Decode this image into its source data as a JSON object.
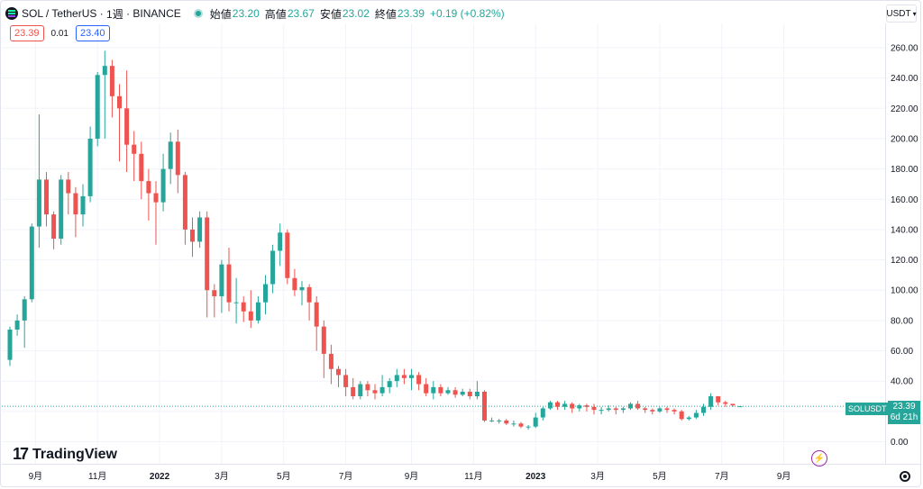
{
  "legend": {
    "symbol": "SOL / TetherUS",
    "interval": "1週",
    "exchange": "BINANCE",
    "open_label": "始値",
    "open": "23.20",
    "high_label": "高値",
    "high": "23.67",
    "low_label": "安値",
    "low": "23.02",
    "close_label": "終値",
    "close": "23.39",
    "change": "+0.19 (+0.82%)",
    "sell_price": "23.39",
    "spread": "0.01",
    "buy_price": "23.40"
  },
  "currency_button": {
    "label": "USDT"
  },
  "price_badge": {
    "symbol": "SOLUSDT",
    "last": "23.39",
    "countdown": "6d 21h"
  },
  "branding": {
    "logo_text": "TradingView",
    "logo_mark": "17"
  },
  "colors": {
    "up": "#26a69a",
    "down": "#ef5350",
    "grid": "#f0f3fa"
  },
  "icons": {
    "symbol": "solana-logo-icon",
    "status": "market-open-dot-icon",
    "lightning": "lightning-icon",
    "settings": "settings-gear-icon"
  },
  "chart_data": {
    "type": "candlestick",
    "y_ticks": [
      "0.00",
      "20.00",
      "40.00",
      "60.00",
      "80.00",
      "100.00",
      "120.00",
      "140.00",
      "160.00",
      "180.00",
      "200.00",
      "220.00",
      "240.00",
      "260.00"
    ],
    "ylim": [
      0,
      268
    ],
    "x_ticks": [
      {
        "label": "9月",
        "index": 3.5
      },
      {
        "label": "11月",
        "index": 12
      },
      {
        "label": "2022",
        "index": 20.5
      },
      {
        "label": "3月",
        "index": 29
      },
      {
        "label": "5月",
        "index": 37.5
      },
      {
        "label": "7月",
        "index": 46
      },
      {
        "label": "9月",
        "index": 55
      },
      {
        "label": "11月",
        "index": 63.5
      },
      {
        "label": "2023",
        "index": 72
      },
      {
        "label": "3月",
        "index": 80.5
      },
      {
        "label": "5月",
        "index": 89
      },
      {
        "label": "7月",
        "index": 97.5
      },
      {
        "label": "9月",
        "index": 106
      }
    ],
    "candles": [
      [
        54,
        74,
        50,
        76
      ],
      [
        74,
        80,
        70,
        84
      ],
      [
        80,
        94,
        62,
        96
      ],
      [
        94,
        142,
        92,
        144
      ],
      [
        142,
        173,
        128,
        216
      ],
      [
        173,
        150,
        142,
        178
      ],
      [
        150,
        134,
        127,
        152
      ],
      [
        134,
        173,
        130,
        176
      ],
      [
        173,
        164,
        150,
        178
      ],
      [
        164,
        150,
        135,
        168
      ],
      [
        150,
        162,
        142,
        170
      ],
      [
        162,
        200,
        158,
        208
      ],
      [
        200,
        242,
        195,
        244
      ],
      [
        242,
        248,
        200,
        258
      ],
      [
        248,
        228,
        214,
        252
      ],
      [
        228,
        220,
        185,
        236
      ],
      [
        220,
        196,
        178,
        245
      ],
      [
        196,
        190,
        172,
        205
      ],
      [
        190,
        172,
        160,
        198
      ],
      [
        172,
        164,
        146,
        180
      ],
      [
        164,
        158,
        130,
        172
      ],
      [
        158,
        180,
        152,
        190
      ],
      [
        180,
        198,
        170,
        204
      ],
      [
        198,
        176,
        164,
        206
      ],
      [
        176,
        140,
        130,
        178
      ],
      [
        140,
        132,
        122,
        148
      ],
      [
        132,
        148,
        128,
        152
      ],
      [
        148,
        100,
        82,
        152
      ],
      [
        100,
        96,
        82,
        104
      ],
      [
        96,
        117,
        85,
        120
      ],
      [
        117,
        92,
        86,
        128
      ],
      [
        92,
        92,
        78,
        108
      ],
      [
        92,
        86,
        79,
        96
      ],
      [
        86,
        80,
        75,
        100
      ],
      [
        80,
        92,
        78,
        96
      ],
      [
        92,
        104,
        84,
        110
      ],
      [
        104,
        126,
        98,
        130
      ],
      [
        126,
        138,
        116,
        144
      ],
      [
        138,
        108,
        104,
        140
      ],
      [
        108,
        100,
        96,
        114
      ],
      [
        100,
        102,
        90,
        106
      ],
      [
        102,
        92,
        80,
        104
      ],
      [
        92,
        76,
        60,
        96
      ],
      [
        76,
        58,
        42,
        80
      ],
      [
        58,
        48,
        38,
        64
      ],
      [
        48,
        44,
        36,
        50
      ],
      [
        44,
        36,
        30,
        48
      ],
      [
        36,
        30,
        28,
        42
      ],
      [
        30,
        38,
        28,
        40
      ],
      [
        38,
        34,
        30,
        40
      ],
      [
        34,
        32,
        28,
        38
      ],
      [
        32,
        36,
        30,
        44
      ],
      [
        36,
        40,
        32,
        42
      ],
      [
        40,
        44,
        36,
        48
      ],
      [
        44,
        42,
        38,
        48
      ],
      [
        42,
        44,
        34,
        48
      ],
      [
        44,
        38,
        34,
        46
      ],
      [
        38,
        32,
        30,
        42
      ],
      [
        32,
        36,
        28,
        40
      ],
      [
        36,
        32,
        30,
        38
      ],
      [
        32,
        34,
        31,
        36
      ],
      [
        34,
        31,
        29,
        36
      ],
      [
        31,
        33,
        30,
        35
      ],
      [
        33,
        30,
        28,
        35
      ],
      [
        30,
        33,
        28,
        40
      ],
      [
        33,
        14,
        13,
        34
      ],
      [
        14,
        14,
        13,
        16
      ],
      [
        14,
        14,
        12,
        15
      ],
      [
        14,
        12,
        11,
        15
      ],
      [
        12,
        12,
        10,
        14
      ],
      [
        12,
        10,
        9,
        13
      ],
      [
        10,
        10,
        8,
        11
      ],
      [
        10,
        16,
        9,
        19
      ],
      [
        16,
        22,
        14,
        23
      ],
      [
        22,
        26,
        21,
        27
      ],
      [
        26,
        23,
        21,
        27
      ],
      [
        23,
        25,
        21,
        27
      ],
      [
        25,
        22,
        19,
        26
      ],
      [
        22,
        24,
        20,
        25
      ],
      [
        24,
        23,
        20,
        25
      ],
      [
        23,
        21,
        18,
        25
      ],
      [
        21,
        21,
        18,
        23
      ],
      [
        21,
        22,
        20,
        24
      ],
      [
        22,
        21,
        18,
        23
      ],
      [
        21,
        22,
        19,
        23
      ],
      [
        22,
        25,
        21,
        26
      ],
      [
        25,
        22,
        21,
        27
      ],
      [
        22,
        21,
        19,
        23
      ],
      [
        21,
        20,
        18,
        22
      ],
      [
        20,
        22,
        19,
        23
      ],
      [
        22,
        21,
        19,
        23
      ],
      [
        21,
        20,
        18,
        22
      ],
      [
        20,
        15,
        14,
        21
      ],
      [
        15,
        16,
        14,
        17
      ],
      [
        16,
        19,
        15,
        21
      ],
      [
        19,
        23,
        17,
        25
      ],
      [
        23,
        30,
        21,
        32
      ],
      [
        30,
        26,
        24,
        30
      ],
      [
        26,
        25,
        23,
        27
      ],
      [
        25,
        24,
        23,
        25
      ],
      [
        23.2,
        23.39,
        23.02,
        23.67
      ]
    ]
  }
}
